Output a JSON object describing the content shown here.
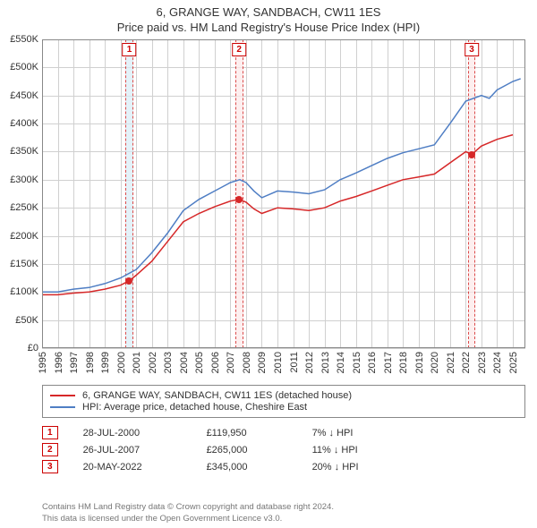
{
  "title": "6, GRANGE WAY, SANDBACH, CW11 1ES",
  "subtitle": "Price paid vs. HM Land Registry's House Price Index (HPI)",
  "chart": {
    "type": "line",
    "background_color": "#ffffff",
    "grid_color": "#d0d0d0",
    "border_color": "#888888",
    "x_years": [
      1995,
      1996,
      1997,
      1998,
      1999,
      2000,
      2001,
      2002,
      2003,
      2004,
      2005,
      2006,
      2007,
      2008,
      2009,
      2010,
      2011,
      2012,
      2013,
      2014,
      2015,
      2016,
      2017,
      2018,
      2019,
      2020,
      2021,
      2022,
      2023,
      2024,
      2025
    ],
    "xlim": [
      1995,
      2025.8
    ],
    "ylim": [
      0,
      550
    ],
    "ytick_step": 50,
    "ytick_labels": [
      "£0",
      "£50K",
      "£100K",
      "£150K",
      "£200K",
      "£250K",
      "£300K",
      "£350K",
      "£400K",
      "£450K",
      "£500K",
      "£550K"
    ],
    "label_fontsize": 11,
    "series": [
      {
        "name": "price_paid",
        "label": "6, GRANGE WAY, SANDBACH, CW11 1ES (detached house)",
        "color": "#d62728",
        "line_width": 1.5,
        "points": [
          [
            1995.0,
            95
          ],
          [
            1996.0,
            95
          ],
          [
            1997.0,
            98
          ],
          [
            1998.0,
            100
          ],
          [
            1999.0,
            105
          ],
          [
            2000.0,
            112
          ],
          [
            2000.56,
            120
          ],
          [
            2001.0,
            130
          ],
          [
            2002.0,
            155
          ],
          [
            2003.0,
            190
          ],
          [
            2004.0,
            225
          ],
          [
            2005.0,
            240
          ],
          [
            2006.0,
            252
          ],
          [
            2007.0,
            262
          ],
          [
            2007.56,
            265
          ],
          [
            2008.0,
            260
          ],
          [
            2008.5,
            248
          ],
          [
            2009.0,
            240
          ],
          [
            2010.0,
            250
          ],
          [
            2011.0,
            248
          ],
          [
            2012.0,
            245
          ],
          [
            2013.0,
            250
          ],
          [
            2014.0,
            262
          ],
          [
            2015.0,
            270
          ],
          [
            2016.0,
            280
          ],
          [
            2017.0,
            290
          ],
          [
            2018.0,
            300
          ],
          [
            2019.0,
            305
          ],
          [
            2020.0,
            310
          ],
          [
            2021.0,
            330
          ],
          [
            2022.0,
            350
          ],
          [
            2022.38,
            345
          ],
          [
            2023.0,
            360
          ],
          [
            2024.0,
            372
          ],
          [
            2025.0,
            380
          ]
        ]
      },
      {
        "name": "hpi",
        "label": "HPI: Average price, detached house, Cheshire East",
        "color": "#4f7ec4",
        "line_width": 1.5,
        "points": [
          [
            1995.0,
            100
          ],
          [
            1996.0,
            100
          ],
          [
            1997.0,
            105
          ],
          [
            1998.0,
            108
          ],
          [
            1999.0,
            115
          ],
          [
            2000.0,
            125
          ],
          [
            2001.0,
            140
          ],
          [
            2002.0,
            170
          ],
          [
            2003.0,
            205
          ],
          [
            2004.0,
            245
          ],
          [
            2005.0,
            265
          ],
          [
            2006.0,
            280
          ],
          [
            2007.0,
            295
          ],
          [
            2007.6,
            300
          ],
          [
            2008.0,
            295
          ],
          [
            2008.5,
            280
          ],
          [
            2009.0,
            268
          ],
          [
            2010.0,
            280
          ],
          [
            2011.0,
            278
          ],
          [
            2012.0,
            275
          ],
          [
            2013.0,
            282
          ],
          [
            2014.0,
            300
          ],
          [
            2015.0,
            312
          ],
          [
            2016.0,
            325
          ],
          [
            2017.0,
            338
          ],
          [
            2018.0,
            348
          ],
          [
            2019.0,
            355
          ],
          [
            2020.0,
            362
          ],
          [
            2021.0,
            400
          ],
          [
            2022.0,
            440
          ],
          [
            2023.0,
            450
          ],
          [
            2023.5,
            445
          ],
          [
            2024.0,
            460
          ],
          [
            2025.0,
            475
          ],
          [
            2025.5,
            480
          ]
        ]
      }
    ],
    "sale_markers": [
      {
        "n": "1",
        "x": 2000.56,
        "y": 120,
        "band_color": "#d9edf7",
        "band_border": "#cc0000",
        "band_width_years": 0.5
      },
      {
        "n": "2",
        "x": 2007.56,
        "y": 265,
        "band_color": "#fde9e9",
        "band_border": "#cc0000",
        "band_width_years": 0.5
      },
      {
        "n": "3",
        "x": 2022.38,
        "y": 345,
        "band_color": "#fde9e9",
        "band_border": "#cc0000",
        "band_width_years": 0.5
      }
    ],
    "sale_dot_color": "#d62728"
  },
  "legend": {
    "rows": [
      {
        "color": "#d62728",
        "label": "6, GRANGE WAY, SANDBACH, CW11 1ES (detached house)"
      },
      {
        "color": "#4f7ec4",
        "label": "HPI: Average price, detached house, Cheshire East"
      }
    ]
  },
  "sales": [
    {
      "n": "1",
      "date": "28-JUL-2000",
      "price": "£119,950",
      "hpi": "7%  ↓ HPI"
    },
    {
      "n": "2",
      "date": "26-JUL-2007",
      "price": "£265,000",
      "hpi": "11%  ↓ HPI"
    },
    {
      "n": "3",
      "date": "20-MAY-2022",
      "price": "£345,000",
      "hpi": "20%  ↓ HPI"
    }
  ],
  "footnote_line1": "Contains HM Land Registry data © Crown copyright and database right 2024.",
  "footnote_line2": "This data is licensed under the Open Government Licence v3.0."
}
